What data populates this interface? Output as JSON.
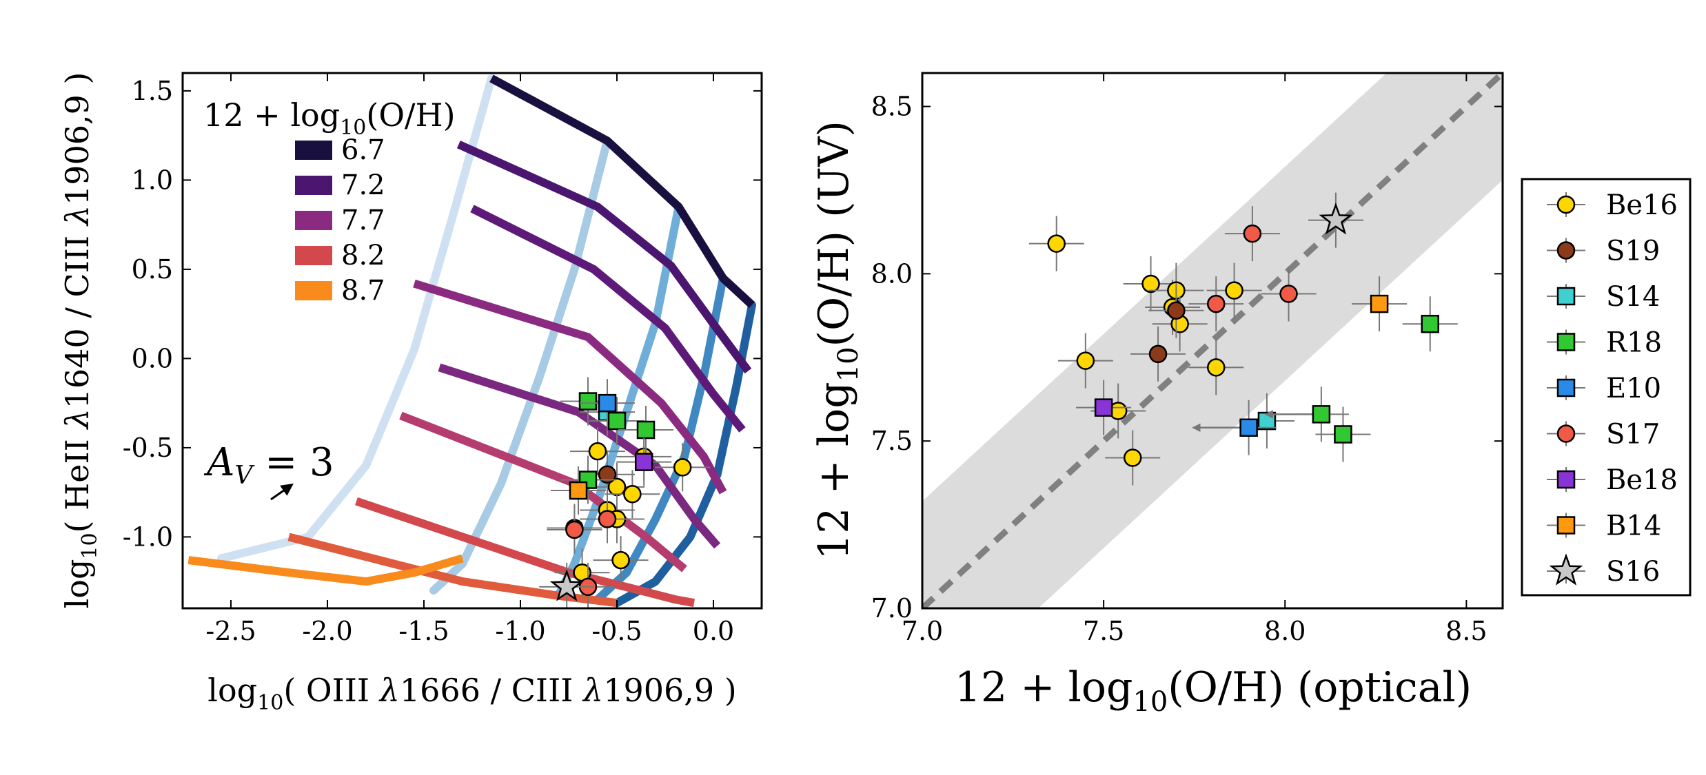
{
  "chart_data": [
    {
      "type": "line",
      "panel": "left",
      "xlabel": "log10( OIII λ1666 / CIII λ1906,9 )",
      "ylabel": "log10( HeII λ1640 / CIII λ1906,9 )",
      "xlim": [
        -2.75,
        0.25
      ],
      "ylim": [
        -1.4,
        1.6
      ],
      "xticks": [
        -2.5,
        -2.0,
        -1.5,
        -1.0,
        -0.5,
        0.0
      ],
      "xtick_labels": [
        "-2.5",
        "-2.0",
        "-1.5",
        "-1.0",
        "-0.5",
        "0.0"
      ],
      "yticks": [
        -1.0,
        -0.5,
        0.0,
        0.5,
        1.0,
        1.5
      ],
      "ytick_labels": [
        "-1.0",
        "-0.5",
        "0.0",
        "0.5",
        "1.0",
        "1.5"
      ],
      "legend_title": "12 + log10(O/H)",
      "metallicity_tracks": [
        {
          "name": "6.7",
          "color": "#1a1040",
          "x": [
            -1.15,
            -0.55,
            -0.18,
            0.05,
            0.2
          ],
          "y": [
            1.57,
            1.22,
            0.85,
            0.45,
            0.3
          ]
        },
        {
          "name": "7.2",
          "color": "#4a1670",
          "x": [
            -1.32,
            -0.6,
            -0.22,
            0.03,
            0.18
          ],
          "y": [
            1.2,
            0.85,
            0.52,
            0.15,
            -0.07
          ]
        },
        {
          "name": "7.7",
          "color": "#8a2a80",
          "x": [
            -1.55,
            -0.65,
            -0.27,
            -0.05,
            0.05
          ],
          "y": [
            0.42,
            0.12,
            -0.25,
            -0.55,
            -0.75
          ]
        },
        {
          "name": "8.2",
          "color": "#d2484c",
          "x": [
            -1.85,
            -0.75,
            -0.38,
            -0.2,
            -0.1
          ],
          "y": [
            -0.8,
            -1.2,
            -1.3,
            -1.35,
            -1.37
          ]
        },
        {
          "name": "8.7",
          "color": "#f98a1c",
          "x": [
            -2.72,
            -2.2,
            -1.8,
            -1.55,
            -1.3
          ],
          "y": [
            -1.13,
            -1.2,
            -1.25,
            -1.2,
            -1.12
          ]
        }
      ],
      "intermediate_tracks": [
        {
          "color": "#5e1a78",
          "x": [
            -1.25,
            -0.62,
            -0.25,
            0.0,
            0.15
          ],
          "y": [
            0.84,
            0.5,
            0.17,
            -0.2,
            -0.4
          ]
        },
        {
          "color": "#7a2880",
          "x": [
            -1.42,
            -0.7,
            -0.3,
            -0.1,
            0.02
          ],
          "y": [
            -0.05,
            -0.3,
            -0.6,
            -0.9,
            -1.05
          ]
        },
        {
          "color": "#b43c6e",
          "x": [
            -1.62,
            -0.72,
            -0.35,
            -0.15
          ],
          "y": [
            -0.32,
            -0.7,
            -1.0,
            -1.18
          ]
        },
        {
          "color": "#e05a3c",
          "x": [
            -2.2,
            -1.3,
            -0.8,
            -0.5
          ],
          "y": [
            -1.0,
            -1.25,
            -1.33,
            -1.37
          ]
        }
      ],
      "ionization_tracks": [
        {
          "color": "#cfe0f2",
          "x": [
            -1.15,
            -1.35,
            -1.55,
            -1.8,
            -2.1,
            -2.55
          ],
          "y": [
            1.57,
            0.8,
            0.05,
            -0.6,
            -1.0,
            -1.12
          ]
        },
        {
          "color": "#a7cbe5",
          "x": [
            -0.55,
            -0.72,
            -0.9,
            -1.1,
            -1.3,
            -1.45
          ],
          "y": [
            1.22,
            0.5,
            -0.1,
            -0.7,
            -1.15,
            -1.3
          ]
        },
        {
          "color": "#6eaed8",
          "x": [
            -0.18,
            -0.3,
            -0.45,
            -0.6,
            -0.72,
            -0.8
          ],
          "y": [
            0.85,
            0.2,
            -0.3,
            -0.8,
            -1.15,
            -1.32
          ]
        },
        {
          "color": "#3f88c2",
          "x": [
            0.05,
            -0.05,
            -0.15,
            -0.3,
            -0.45,
            -0.6
          ],
          "y": [
            0.45,
            -0.1,
            -0.55,
            -0.9,
            -1.2,
            -1.35
          ]
        },
        {
          "color": "#1f5fa0",
          "x": [
            0.2,
            0.12,
            0.02,
            -0.12,
            -0.3,
            -0.5
          ],
          "y": [
            0.3,
            -0.15,
            -0.65,
            -1.0,
            -1.25,
            -1.37
          ]
        }
      ],
      "arrow_label": "A_V = 3",
      "observations": [
        {
          "label": "Be16",
          "marker": "circle",
          "color": "#ffd700",
          "x": [
            -0.6,
            -0.5,
            -0.42,
            -0.55,
            -0.72,
            -0.68,
            -0.48,
            -0.16,
            -0.36,
            -0.5
          ],
          "y": [
            -0.52,
            -0.72,
            -0.76,
            -0.85,
            -0.95,
            -1.2,
            -1.13,
            -0.61,
            -0.55,
            -0.9
          ]
        },
        {
          "label": "S19",
          "marker": "circle",
          "color": "#8b3a1a",
          "x": [
            -0.55
          ],
          "y": [
            -0.65
          ]
        },
        {
          "label": "S14",
          "marker": "square",
          "color": "#40d0d0",
          "x": [
            -0.55
          ],
          "y": [
            -0.3
          ]
        },
        {
          "label": "R18",
          "marker": "square",
          "color": "#32c832",
          "x": [
            -0.65,
            -0.5,
            -0.35,
            -0.65
          ],
          "y": [
            -0.24,
            -0.35,
            -0.4,
            -0.68
          ]
        },
        {
          "label": "E10",
          "marker": "square",
          "color": "#2a8ae8",
          "x": [
            -0.55
          ],
          "y": [
            -0.25
          ]
        },
        {
          "label": "S17",
          "marker": "circle",
          "color": "#f05a46",
          "x": [
            -0.72,
            -0.55,
            -0.65
          ],
          "y": [
            -0.96,
            -0.9,
            -1.28
          ]
        },
        {
          "label": "Be18",
          "marker": "square",
          "color": "#8a34d8",
          "x": [
            -0.36
          ],
          "y": [
            -0.58
          ]
        },
        {
          "label": "B14",
          "marker": "square",
          "color": "#ff9a10",
          "x": [
            -0.7
          ],
          "y": [
            -0.74
          ]
        },
        {
          "label": "S16",
          "marker": "star",
          "color": "#c8c8c8",
          "x": [
            -0.76
          ],
          "y": [
            -1.28
          ]
        }
      ]
    },
    {
      "type": "scatter",
      "panel": "right",
      "xlabel": "12 + log10(O/H) (optical)",
      "ylabel": "12 + log10(O/H) (UV)",
      "xlim": [
        7.0,
        8.6
      ],
      "ylim": [
        7.0,
        8.6
      ],
      "xticks": [
        7.0,
        7.5,
        8.0,
        8.5
      ],
      "xtick_labels": [
        "7.0",
        "7.5",
        "8.0",
        "8.5"
      ],
      "yticks": [
        7.0,
        7.5,
        8.0,
        8.5
      ],
      "ytick_labels": [
        "7.0",
        "7.5",
        "8.0",
        "8.5"
      ],
      "one_to_one_band": 0.32,
      "series": [
        {
          "name": "Be16",
          "marker": "circle",
          "color": "#ffd700",
          "x": [
            7.37,
            7.45,
            7.54,
            7.58,
            7.63,
            7.69,
            7.7,
            7.71,
            7.81,
            7.86
          ],
          "y": [
            8.09,
            7.74,
            7.59,
            7.45,
            7.97,
            7.9,
            7.95,
            7.85,
            7.72,
            7.95
          ]
        },
        {
          "name": "S19",
          "marker": "circle",
          "color": "#8b3a1a",
          "x": [
            7.65,
            7.7
          ],
          "y": [
            7.76,
            7.89
          ]
        },
        {
          "name": "S14",
          "marker": "square",
          "color": "#40d0d0",
          "x": [
            7.95
          ],
          "y": [
            7.56
          ]
        },
        {
          "name": "R18",
          "marker": "square",
          "color": "#32c832",
          "x": [
            8.1,
            8.16,
            8.4
          ],
          "y": [
            7.58,
            7.52,
            7.85
          ]
        },
        {
          "name": "E10",
          "marker": "square",
          "color": "#2a8ae8",
          "x": [
            7.9
          ],
          "y": [
            7.54
          ]
        },
        {
          "name": "S17",
          "marker": "circle",
          "color": "#f05a46",
          "x": [
            7.81,
            7.91,
            8.01
          ],
          "y": [
            7.91,
            8.12,
            7.94
          ]
        },
        {
          "name": "Be18",
          "marker": "square",
          "color": "#8a34d8",
          "x": [
            7.5
          ],
          "y": [
            7.6
          ]
        },
        {
          "name": "B14",
          "marker": "square",
          "color": "#ff9a10",
          "x": [
            8.26
          ],
          "y": [
            7.91
          ]
        },
        {
          "name": "S16",
          "marker": "star",
          "color": "#c8c8c8",
          "x": [
            8.14
          ],
          "y": [
            8.16
          ]
        }
      ]
    }
  ]
}
